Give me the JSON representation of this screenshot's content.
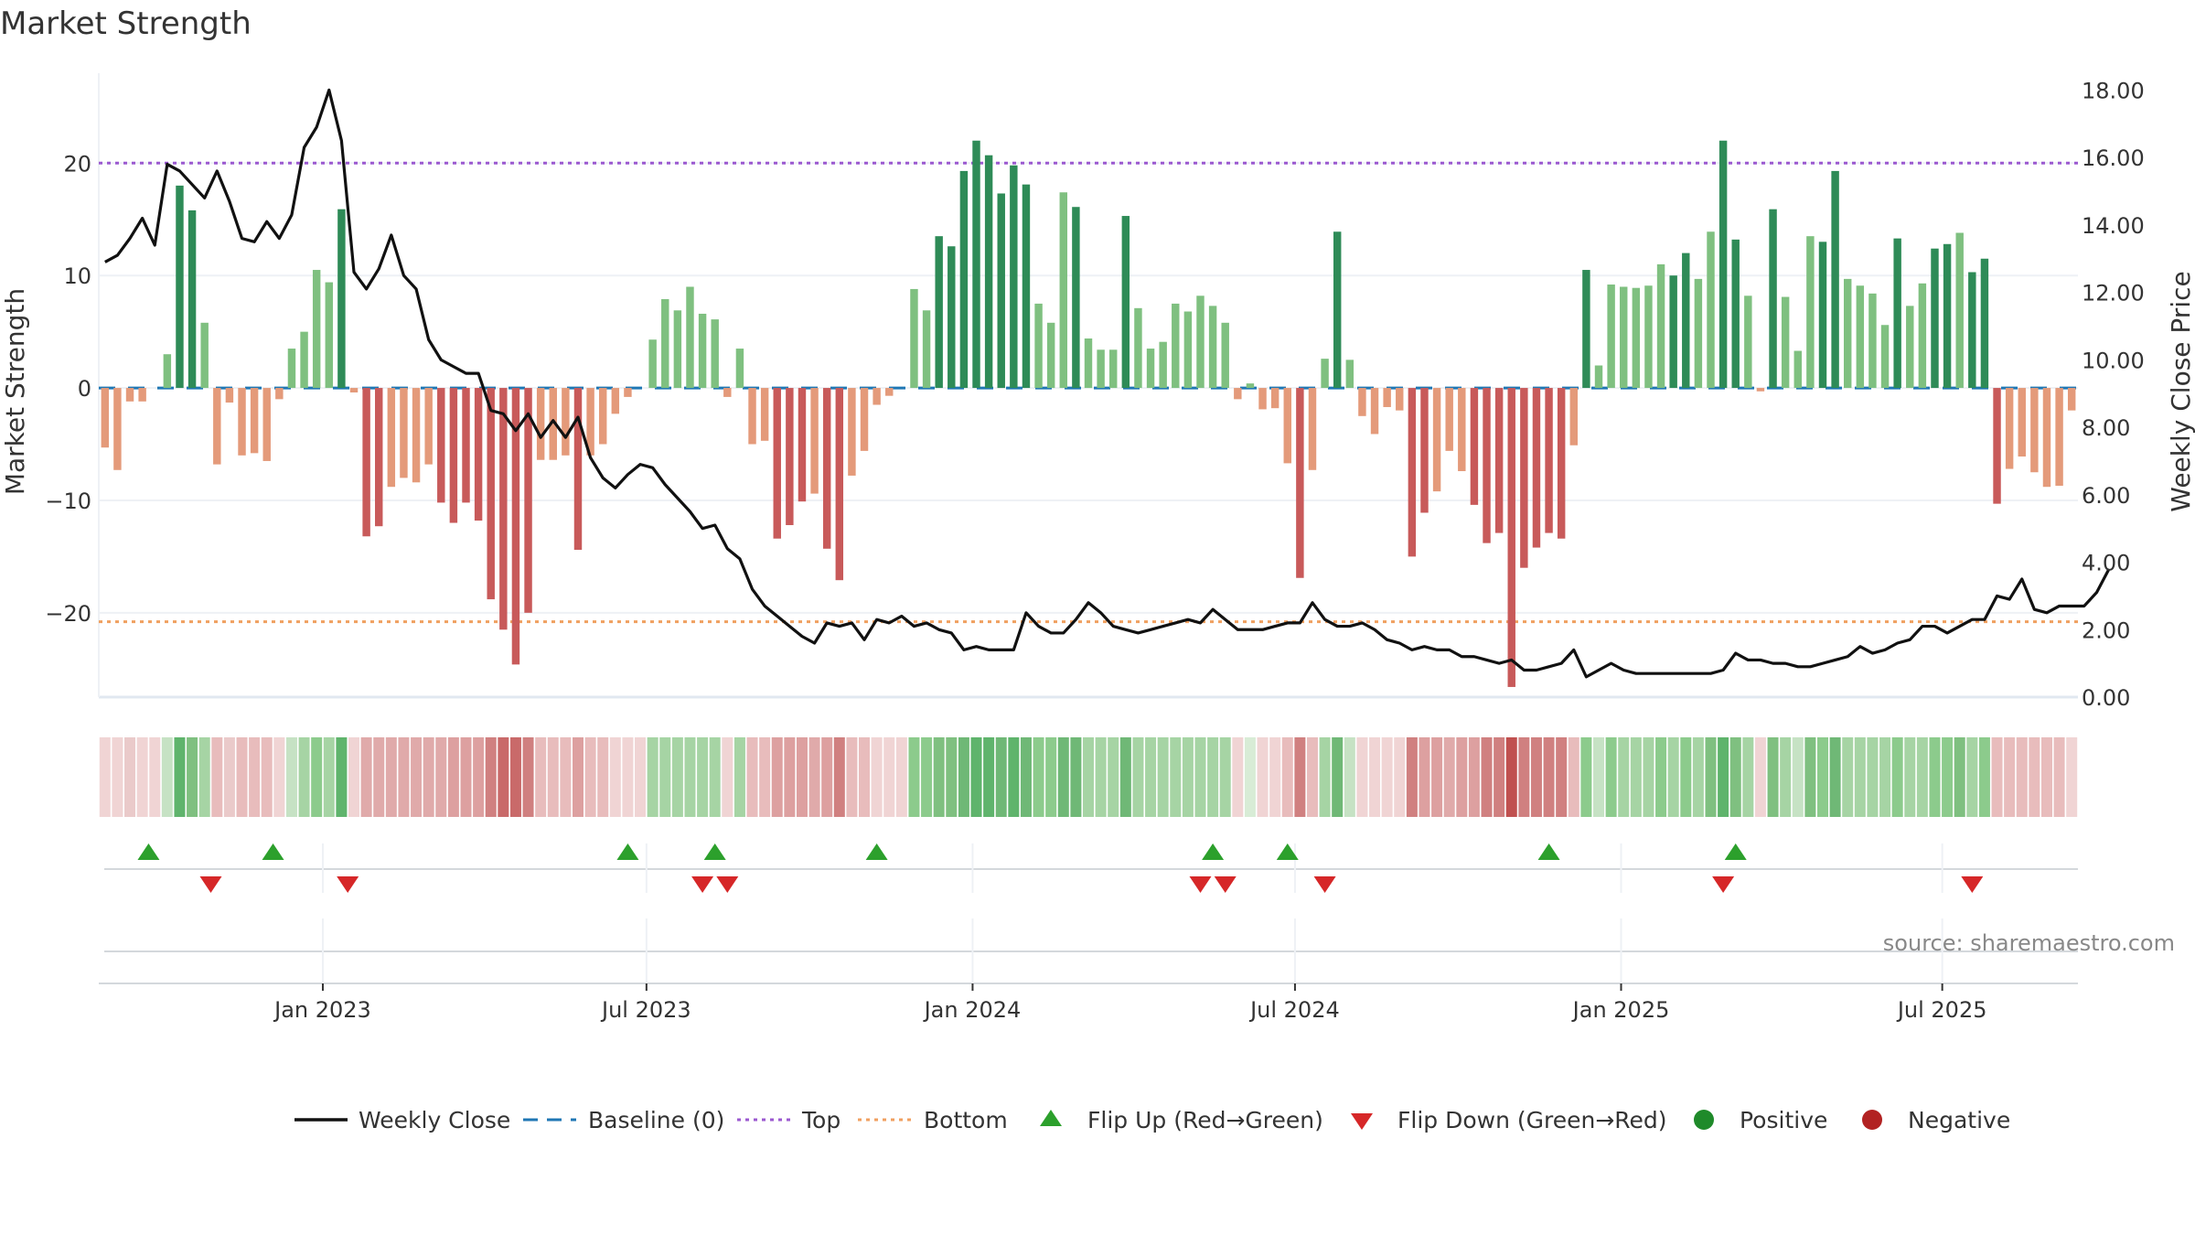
{
  "chart_data": {
    "type": "bar",
    "title": "Market Strength",
    "ylabel": "Market Strength",
    "ylabel_right": "Weekly Close Price",
    "source": "source: sharemaestro.com",
    "ylim": [
      -27.5,
      28
    ],
    "ylim_right": [
      0,
      18.5
    ],
    "yticks": [
      20,
      10,
      0,
      -10,
      -20
    ],
    "ytick_labels": [
      "20",
      "10",
      "0",
      "−10",
      "−20"
    ],
    "yticks_right": [
      0,
      2,
      4,
      6,
      8,
      10,
      12,
      14,
      16,
      18
    ],
    "ytick_labels_right": [
      "0.00",
      "2.00",
      "4.00",
      "6.00",
      "8.00",
      "10.00",
      "12.00",
      "14.00",
      "16.00",
      "18.00"
    ],
    "x_start_week_index": 0,
    "xticks": [
      {
        "label": "Jan 2023",
        "week": 17.5
      },
      {
        "label": "Jul 2023",
        "week": 43.5
      },
      {
        "label": "Jan 2024",
        "week": 69.7
      },
      {
        "label": "Jul 2024",
        "week": 95.6
      },
      {
        "label": "Jan 2025",
        "week": 121.8
      },
      {
        "label": "Jul 2025",
        "week": 147.6
      }
    ],
    "top_line": 20,
    "bottom_line": -20.8,
    "baseline": 0,
    "colors": {
      "strong_green": "#2e8b57",
      "light_green": "#7fc080",
      "strong_red": "#c85a5a",
      "light_red": "#e49a7a",
      "close_line": "#111111",
      "baseline": "#1f77b4",
      "top": "#9b59d0",
      "bottom": "#f0a060",
      "flip_up": "#2ca02c",
      "flip_down": "#d62728",
      "positive": "#1f8a2a",
      "negative": "#b22222"
    },
    "strength": [
      -5.3,
      -7.3,
      -1.2,
      -1.2,
      0,
      3,
      18,
      15.8,
      5.8,
      -6.8,
      -1.3,
      -6,
      -5.8,
      -6.5,
      -1,
      3.5,
      5,
      10.5,
      9.4,
      15.9,
      -0.4,
      -13.2,
      -12.3,
      -8.8,
      -8,
      -8.4,
      -6.8,
      -10.2,
      -12,
      -10.2,
      -11.8,
      -18.8,
      -21.5,
      -24.6,
      -20,
      -6.4,
      -6.4,
      -6,
      -14.4,
      -6,
      -5,
      -2.3,
      -0.8,
      0,
      4.3,
      7.9,
      6.9,
      9,
      6.6,
      6.1,
      -0.8,
      3.5,
      -5,
      -4.7,
      -13.4,
      -12.2,
      -10.1,
      -9.4,
      -14.3,
      -17.1,
      -7.8,
      -5.6,
      -1.5,
      -0.7,
      0,
      8.8,
      6.9,
      13.5,
      12.6,
      19.3,
      22,
      20.7,
      17.3,
      19.8,
      18.1,
      7.5,
      5.8,
      17.4,
      16.1,
      4.4,
      3.4,
      3.4,
      15.3,
      7.1,
      3.5,
      4.1,
      7.5,
      6.8,
      8.2,
      7.3,
      5.8,
      -1,
      0.4,
      -1.9,
      -1.8,
      -6.7,
      -16.9,
      -7.3,
      2.6,
      13.9,
      2.5,
      -2.5,
      -4.1,
      -1.7,
      -2,
      -15,
      -11.1,
      -9.2,
      -5.6,
      -7.4,
      -10.4,
      -13.8,
      -12.9,
      -26.6,
      -16,
      -14.2,
      -12.9,
      -13.4,
      -5.1,
      10.5,
      2,
      9.2,
      9,
      8.9,
      9.1,
      11,
      10,
      12,
      9.7,
      13.9,
      22,
      13.2,
      8.2,
      -0.3,
      15.9,
      8.1,
      3.3,
      13.5,
      13,
      19.3,
      9.7,
      9.1,
      8.4,
      5.6,
      13.3,
      7.3,
      9.3,
      12.4,
      12.8,
      13.8,
      10.3,
      11.5,
      -10.3,
      -7.2,
      -6.1,
      -7.5,
      -8.8,
      -8.7,
      -2
    ],
    "weekly_close": [
      12.9,
      13.1,
      13.6,
      14.2,
      13.4,
      15.8,
      15.6,
      15.2,
      14.8,
      15.6,
      14.7,
      13.6,
      13.5,
      14.1,
      13.6,
      14.3,
      16.3,
      16.9,
      18,
      16.5,
      12.6,
      12.1,
      12.7,
      13.7,
      12.5,
      12.1,
      10.6,
      10,
      9.8,
      9.6,
      9.6,
      8.5,
      8.4,
      7.9,
      8.4,
      7.7,
      8.2,
      7.7,
      8.3,
      7.1,
      6.5,
      6.2,
      6.6,
      6.9,
      6.8,
      6.3,
      5.9,
      5.5,
      5,
      5.1,
      4.4,
      4.1,
      3.2,
      2.7,
      2.4,
      2.1,
      1.8,
      1.6,
      2.2,
      2.1,
      2.2,
      1.7,
      2.3,
      2.2,
      2.4,
      2.1,
      2.2,
      2,
      1.9,
      1.4,
      1.5,
      1.4,
      1.4,
      1.4,
      2.5,
      2.1,
      1.9,
      1.9,
      2.3,
      2.8,
      2.5,
      2.1,
      2,
      1.9,
      2,
      2.1,
      2.2,
      2.3,
      2.2,
      2.6,
      2.3,
      2,
      2,
      2,
      2.1,
      2.2,
      2.2,
      2.8,
      2.3,
      2.1,
      2.1,
      2.2,
      2,
      1.7,
      1.6,
      1.4,
      1.5,
      1.4,
      1.4,
      1.2,
      1.2,
      1.1,
      1,
      1.1,
      0.8,
      0.8,
      0.9,
      1,
      1.4,
      0.6,
      0.8,
      1,
      0.8,
      0.7,
      0.7,
      0.7,
      0.7,
      0.7,
      0.7,
      0.7,
      0.8,
      1.3,
      1.1,
      1.1,
      1,
      1,
      0.9,
      0.9,
      1,
      1.1,
      1.2,
      1.5,
      1.3,
      1.4,
      1.6,
      1.7,
      2.1,
      2.1,
      1.9,
      2.1,
      2.3,
      2.3,
      3,
      2.9,
      3.5,
      2.6,
      2.5,
      2.7,
      2.7,
      2.7,
      3.1,
      3.8
    ],
    "heat_colors": [
      "#f0d4d4",
      "#f0d4d4",
      "#eacaca",
      "#f0d4d4",
      "#f0d4d4",
      "#c6e2c4",
      "#5fb46c",
      "#7fc080",
      "#a6d4a4",
      "#e8bcbc",
      "#eacaca",
      "#e8bcbc",
      "#e8bcbc",
      "#e8bcbc",
      "#f0d4d4",
      "#c6e2c4",
      "#a6d4a4",
      "#8ccb8c",
      "#a6d4a4",
      "#5fb46c",
      "#f0d4d4",
      "#e0aaaa",
      "#e0aaaa",
      "#e0aaaa",
      "#e0aaaa",
      "#e0aaaa",
      "#e0aaaa",
      "#e0aaaa",
      "#dda0a0",
      "#dda0a0",
      "#dda0a0",
      "#d08080",
      "#c96a6a",
      "#c96a6a",
      "#d08080",
      "#e8bcbc",
      "#e8bcbc",
      "#e8bcbc",
      "#dda0a0",
      "#e8bcbc",
      "#e8bcbc",
      "#f0d4d4",
      "#f0d4d4",
      "#f0d4d4",
      "#a6d4a4",
      "#a6d4a4",
      "#a6d4a4",
      "#a6d4a4",
      "#a6d4a4",
      "#a6d4a4",
      "#f0d4d4",
      "#a6d4a4",
      "#e8bcbc",
      "#e8bcbc",
      "#dda0a0",
      "#dda0a0",
      "#dda0a0",
      "#e0aaaa",
      "#dda0a0",
      "#d08080",
      "#e8bcbc",
      "#e8bcbc",
      "#f0d4d4",
      "#f0d4d4",
      "#f0d4d4",
      "#8ccb8c",
      "#8ccb8c",
      "#7fc080",
      "#7fc080",
      "#6fb876",
      "#5fb46c",
      "#5fb46c",
      "#6fb876",
      "#5fb46c",
      "#6fb876",
      "#8ccb8c",
      "#8ccb8c",
      "#6fb876",
      "#6fb876",
      "#a6d4a4",
      "#a6d4a4",
      "#a6d4a4",
      "#6fb876",
      "#a6d4a4",
      "#a6d4a4",
      "#a6d4a4",
      "#a6d4a4",
      "#a6d4a4",
      "#a6d4a4",
      "#a6d4a4",
      "#a6d4a4",
      "#f0d4d4",
      "#d8ecd6",
      "#f0d4d4",
      "#f0d4d4",
      "#e8bcbc",
      "#d08080",
      "#e8bcbc",
      "#a6d4a4",
      "#6fb876",
      "#c6e2c4",
      "#f0d4d4",
      "#f0d4d4",
      "#f0d4d4",
      "#f0d4d4",
      "#d08080",
      "#dda0a0",
      "#dda0a0",
      "#e0aaaa",
      "#dda0a0",
      "#dda0a0",
      "#d08080",
      "#d08080",
      "#c0504f",
      "#d08080",
      "#d08080",
      "#d08080",
      "#d08080",
      "#e8bcbc",
      "#8ccb8c",
      "#c6e2c4",
      "#8ccb8c",
      "#a6d4a4",
      "#a6d4a4",
      "#a6d4a4",
      "#8ccb8c",
      "#a6d4a4",
      "#8ccb8c",
      "#a6d4a4",
      "#7fc080",
      "#5fb46c",
      "#7fc080",
      "#a6d4a4",
      "#f0d4d4",
      "#7fc080",
      "#a6d4a4",
      "#c6e2c4",
      "#7fc080",
      "#8ccb8c",
      "#6fb876",
      "#a6d4a4",
      "#a6d4a4",
      "#a6d4a4",
      "#a6d4a4",
      "#8ccb8c",
      "#a6d4a4",
      "#a6d4a4",
      "#8ccb8c",
      "#8ccb8c",
      "#7fc080",
      "#a6d4a4",
      "#8ccb8c",
      "#e8bcbc",
      "#e8bcbc",
      "#e8bcbc",
      "#e8bcbc",
      "#e8bcbc",
      "#e8bcbc",
      "#f0d4d4"
    ],
    "flip_up_weeks": [
      3.5,
      13.5,
      42,
      49,
      62,
      89,
      95,
      116,
      131
    ],
    "flip_down_weeks": [
      8.5,
      19.5,
      48,
      50,
      88,
      90,
      98,
      130,
      150
    ],
    "legend": [
      {
        "label": "Weekly Close",
        "kind": "line",
        "color": "#111111"
      },
      {
        "label": "Baseline (0)",
        "kind": "dash",
        "color": "#1f77b4"
      },
      {
        "label": "Top",
        "kind": "dot",
        "color": "#9b59d0"
      },
      {
        "label": "Bottom",
        "kind": "dot",
        "color": "#f0a060"
      },
      {
        "label": "Flip Up (Red→Green)",
        "kind": "tri-up",
        "color": "#2ca02c"
      },
      {
        "label": "Flip Down (Green→Red)",
        "kind": "tri-down",
        "color": "#d62728"
      },
      {
        "label": "Positive",
        "kind": "circle",
        "color": "#1f8a2a"
      },
      {
        "label": "Negative",
        "kind": "circle",
        "color": "#b22222"
      }
    ]
  }
}
